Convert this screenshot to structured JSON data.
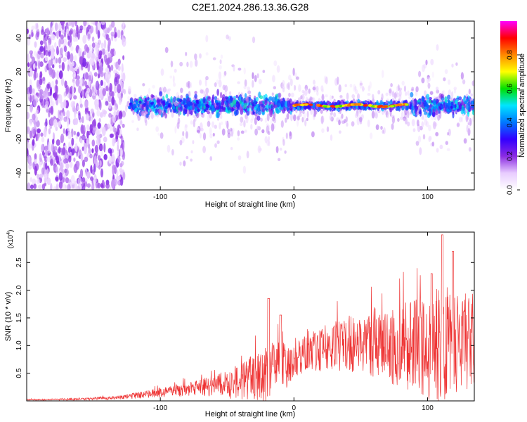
{
  "title": "C2E1.2024.286.13.36.G28",
  "chart_data": [
    {
      "type": "heatmap",
      "xlabel": "Height of straight line (km)",
      "ylabel": "Frequency (Hz)",
      "xlim": [
        -200,
        135
      ],
      "ylim": [
        -50,
        50
      ],
      "x_ticks": [
        -100,
        0,
        100
      ],
      "x_tick_labels": [
        "-100",
        "0",
        "100"
      ],
      "y_ticks": [
        -40,
        -20,
        0,
        20,
        40
      ],
      "y_tick_labels": [
        "-40",
        "-20",
        "0",
        "20",
        "40"
      ],
      "colorbar": {
        "label": "Normalized spectral amplitude",
        "range": [
          0,
          1
        ],
        "ticks": [
          0.0,
          0.2,
          0.4,
          0.6,
          0.8
        ],
        "tick_labels": [
          "0.0",
          "0.2",
          "0.4",
          "0.6",
          "0.8"
        ],
        "colors": [
          "#ffffff",
          "#e8ccff",
          "#8a2be2",
          "#3300ff",
          "#0077ff",
          "#00e5ff",
          "#00e000",
          "#ffff00",
          "#ff8800",
          "#ff0000",
          "#ff00ff"
        ]
      },
      "features": {
        "noise_region_x": [
          -200,
          -127
        ],
        "signal_band_center_hz": 0,
        "strong_signal_x": [
          0,
          85
        ]
      },
      "grid": false
    },
    {
      "type": "line",
      "xlabel": "Height of straight line (km)",
      "ylabel": "SNR (10 * v/v)",
      "y_multiplier_label": "(x10",
      "y_multiplier_exponent": "4",
      "xlim": [
        -200,
        135
      ],
      "ylim": [
        0,
        3.05
      ],
      "x_ticks": [
        -100,
        0,
        100
      ],
      "x_tick_labels": [
        "-100",
        "0",
        "100"
      ],
      "y_ticks": [
        0.5,
        1.0,
        1.5,
        2.0,
        2.5
      ],
      "y_tick_labels": [
        "0.5",
        "1.0",
        "1.5",
        "2.0",
        "2.5"
      ],
      "color": "#ee3333",
      "envelope": {
        "x": [
          -200,
          -160,
          -130,
          -110,
          -90,
          -75,
          -60,
          -45,
          -30,
          -20,
          -15,
          -8,
          -5,
          0,
          10,
          20,
          30,
          40,
          50,
          60,
          70,
          80,
          90,
          100,
          110,
          120,
          130,
          135
        ],
        "y_mean": [
          0.02,
          0.03,
          0.06,
          0.12,
          0.18,
          0.22,
          0.27,
          0.33,
          0.42,
          0.52,
          0.58,
          0.62,
          0.6,
          0.72,
          0.85,
          0.93,
          1.0,
          1.03,
          1.05,
          1.02,
          1.0,
          0.97,
          0.98,
          1.02,
          1.1,
          1.1,
          1.05,
          1.1
        ],
        "y_spread": [
          0.01,
          0.02,
          0.04,
          0.07,
          0.1,
          0.14,
          0.2,
          0.3,
          0.4,
          0.55,
          0.5,
          0.45,
          0.35,
          0.3,
          0.35,
          0.4,
          0.45,
          0.5,
          0.55,
          0.6,
          0.65,
          0.75,
          0.85,
          1.0,
          1.1,
          1.0,
          0.9,
          0.8
        ]
      },
      "peaks": {
        "x": [
          -19,
          -10,
          103,
          111,
          119
        ],
        "y": [
          1.85,
          1.55,
          2.3,
          3.0,
          2.7
        ]
      },
      "grid": false
    }
  ]
}
